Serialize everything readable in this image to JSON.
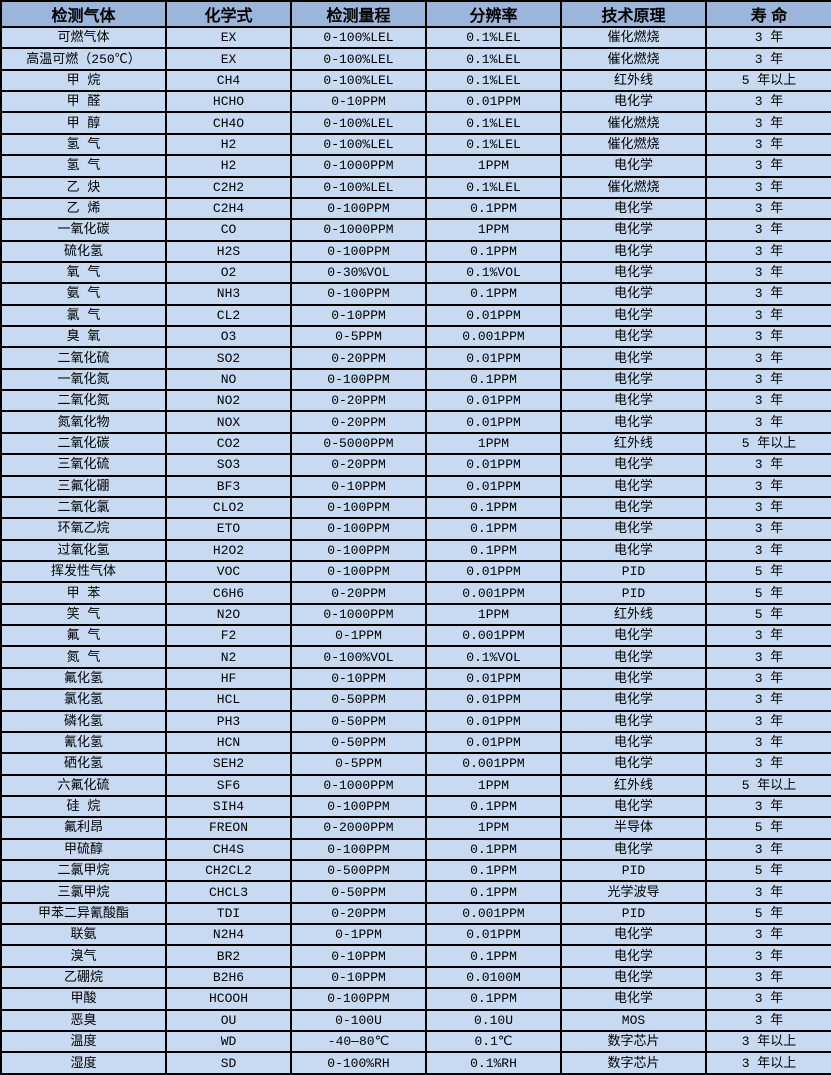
{
  "colors": {
    "header_bg": "#9cb6db",
    "row_bg": "#c8daf2",
    "border": "#000000",
    "text": "#000000"
  },
  "table": {
    "column_keys": [
      "gas",
      "formula",
      "range",
      "resolution",
      "principle",
      "lifespan"
    ],
    "columns": [
      "检测气体",
      "化学式",
      "检测量程",
      "分辨率",
      "技术原理",
      "寿 命"
    ],
    "rows": [
      [
        "可燃气体",
        "EX",
        "0-100%LEL",
        "0.1%LEL",
        "催化燃烧",
        "3 年"
      ],
      [
        "高温可燃（250℃）",
        "EX",
        "0-100%LEL",
        "0.1%LEL",
        "催化燃烧",
        "3 年"
      ],
      [
        "甲 烷",
        "CH4",
        "0-100%LEL",
        "0.1%LEL",
        "红外线",
        "5 年以上"
      ],
      [
        "甲 醛",
        "HCHO",
        "0-10PPM",
        "0.01PPM",
        "电化学",
        "3 年"
      ],
      [
        "甲 醇",
        "CH4O",
        "0-100%LEL",
        "0.1%LEL",
        "催化燃烧",
        "3 年"
      ],
      [
        "氢 气",
        "H2",
        "0-100%LEL",
        "0.1%LEL",
        "催化燃烧",
        "3 年"
      ],
      [
        "氢 气",
        "H2",
        "0-1000PPM",
        "1PPM",
        "电化学",
        "3 年"
      ],
      [
        "乙 炔",
        "C2H2",
        "0-100%LEL",
        "0.1%LEL",
        "催化燃烧",
        "3 年"
      ],
      [
        "乙 烯",
        "C2H4",
        "0-100PPM",
        "0.1PPM",
        "电化学",
        "3 年"
      ],
      [
        "一氧化碳",
        "CO",
        "0-1000PPM",
        "1PPM",
        "电化学",
        "3 年"
      ],
      [
        "硫化氢",
        "H2S",
        "0-100PPM",
        "0.1PPM",
        "电化学",
        "3 年"
      ],
      [
        "氧 气",
        "O2",
        "0-30%VOL",
        "0.1%VOL",
        "电化学",
        "3 年"
      ],
      [
        "氨 气",
        "NH3",
        "0-100PPM",
        "0.1PPM",
        "电化学",
        "3 年"
      ],
      [
        "氯 气",
        "CL2",
        "0-10PPM",
        "0.01PPM",
        "电化学",
        "3 年"
      ],
      [
        "臭 氧",
        "O3",
        "0-5PPM",
        "0.001PPM",
        "电化学",
        "3 年"
      ],
      [
        "二氧化硫",
        "SO2",
        "0-20PPM",
        "0.01PPM",
        "电化学",
        "3 年"
      ],
      [
        "一氧化氮",
        "NO",
        "0-100PPM",
        "0.1PPM",
        "电化学",
        "3 年"
      ],
      [
        "二氧化氮",
        "NO2",
        "0-20PPM",
        "0.01PPM",
        "电化学",
        "3 年"
      ],
      [
        "氮氧化物",
        "NOX",
        "0-20PPM",
        "0.01PPM",
        "电化学",
        "3 年"
      ],
      [
        "二氧化碳",
        "CO2",
        "0-5000PPM",
        "1PPM",
        "红外线",
        "5 年以上"
      ],
      [
        "三氧化硫",
        "SO3",
        "0-20PPM",
        "0.01PPM",
        "电化学",
        "3 年"
      ],
      [
        "三氟化硼",
        "BF3",
        "0-10PPM",
        "0.01PPM",
        "电化学",
        "3 年"
      ],
      [
        "二氧化氯",
        "CLO2",
        "0-100PPM",
        "0.1PPM",
        "电化学",
        "3 年"
      ],
      [
        "环氧乙烷",
        "ETO",
        "0-100PPM",
        "0.1PPM",
        "电化学",
        "3 年"
      ],
      [
        "过氧化氢",
        "H2O2",
        "0-100PPM",
        "0.1PPM",
        "电化学",
        "3 年"
      ],
      [
        "挥发性气体",
        "VOC",
        "0-100PPM",
        "0.01PPM",
        "PID",
        "5 年"
      ],
      [
        "甲 苯",
        "C6H6",
        "0-20PPM",
        "0.001PPM",
        "PID",
        "5 年"
      ],
      [
        "笑 气",
        "N2O",
        "0-1000PPM",
        "1PPM",
        "红外线",
        "5 年"
      ],
      [
        "氟 气",
        "F2",
        "0-1PPM",
        "0.001PPM",
        "电化学",
        "3 年"
      ],
      [
        "氮 气",
        "N2",
        "0-100%VOL",
        "0.1%VOL",
        "电化学",
        "3 年"
      ],
      [
        "氟化氢",
        "HF",
        "0-10PPM",
        "0.01PPM",
        "电化学",
        "3 年"
      ],
      [
        "氯化氢",
        "HCL",
        "0-50PPM",
        "0.01PPM",
        "电化学",
        "3 年"
      ],
      [
        "磷化氢",
        "PH3",
        "0-50PPM",
        "0.01PPM",
        "电化学",
        "3 年"
      ],
      [
        "氰化氢",
        "HCN",
        "0-50PPM",
        "0.01PPM",
        "电化学",
        "3 年"
      ],
      [
        "硒化氢",
        "SEH2",
        "0-5PPM",
        "0.001PPM",
        "电化学",
        "3 年"
      ],
      [
        "六氟化硫",
        "SF6",
        "0-1000PPM",
        "1PPM",
        "红外线",
        "5 年以上"
      ],
      [
        "硅 烷",
        "SIH4",
        "0-100PPM",
        "0.1PPM",
        "电化学",
        "3 年"
      ],
      [
        "氟利昂",
        "FREON",
        "0-2000PPM",
        "1PPM",
        "半导体",
        "5 年"
      ],
      [
        "甲硫醇",
        "CH4S",
        "0-100PPM",
        "0.1PPM",
        "电化学",
        "3 年"
      ],
      [
        "二氯甲烷",
        "CH2CL2",
        "0-500PPM",
        "0.1PPM",
        "PID",
        "5 年"
      ],
      [
        "三氯甲烷",
        "CHCL3",
        "0-50PPM",
        "0.1PPM",
        "光学波导",
        "3 年"
      ],
      [
        "甲苯二异氰酸酯",
        "TDI",
        "0-20PPM",
        "0.001PPM",
        "PID",
        "5 年"
      ],
      [
        "联氨",
        "N2H4",
        "0-1PPM",
        "0.01PPM",
        "电化学",
        "3 年"
      ],
      [
        "溴气",
        "BR2",
        "0-10PPM",
        "0.1PPM",
        "电化学",
        "3 年"
      ],
      [
        "乙硼烷",
        "B2H6",
        "0-10PPM",
        "0.0100M",
        "电化学",
        "3 年"
      ],
      [
        "甲酸",
        "HCOOH",
        "0-100PPM",
        "0.1PPM",
        "电化学",
        "3 年"
      ],
      [
        "恶臭",
        "OU",
        "0-100U",
        "0.10U",
        "MOS",
        "3 年"
      ],
      [
        "温度",
        "WD",
        "-40—80℃",
        "0.1℃",
        "数字芯片",
        "3 年以上"
      ],
      [
        "湿度",
        "SD",
        "0-100%RH",
        "0.1%RH",
        "数字芯片",
        "3 年以上"
      ]
    ]
  }
}
